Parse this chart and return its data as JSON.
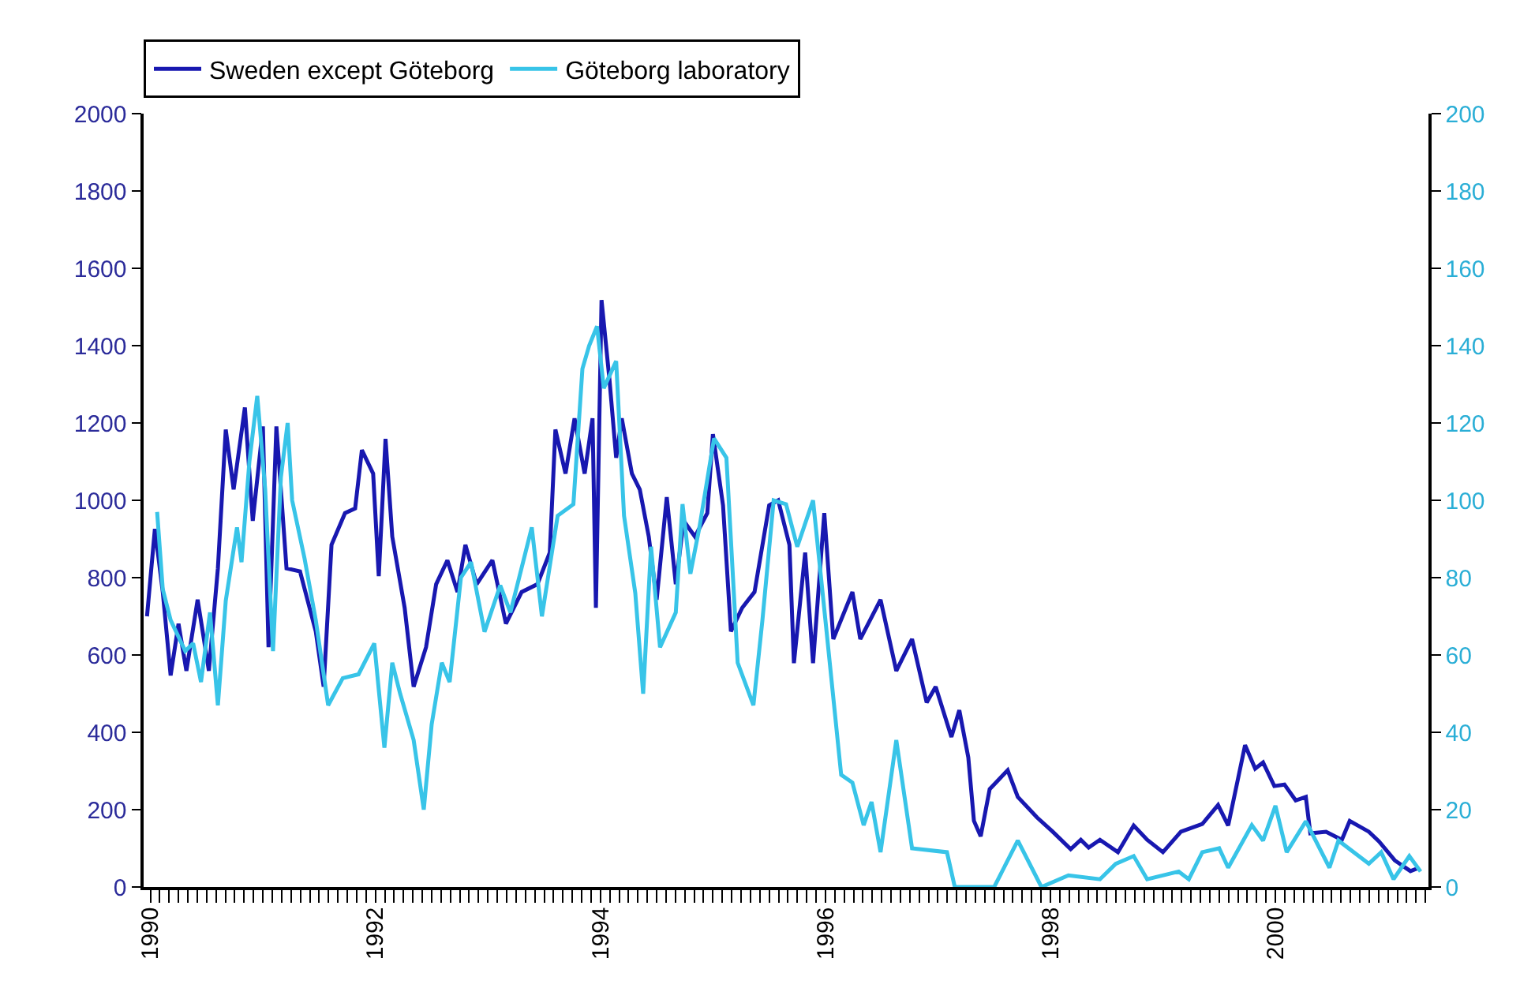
{
  "chart_data": {
    "type": "line",
    "xlim": [
      1989.94,
      2001.36
    ],
    "xticks": [
      1990,
      1992,
      1994,
      1996,
      1998,
      2000
    ],
    "ylim": [
      0,
      2000
    ],
    "yticks": [
      0,
      200,
      400,
      600,
      800,
      1000,
      1200,
      1400,
      1600,
      1800,
      2000
    ],
    "y2lim": [
      0,
      200
    ],
    "y2ticks": [
      0,
      20,
      40,
      60,
      80,
      100,
      120,
      140,
      160,
      180,
      200
    ],
    "grid": false,
    "legend": "top left",
    "marker": "none",
    "line_style": "solid",
    "series": [
      {
        "name": "Sweden except Göteborg",
        "color": "#1818b0",
        "x": [
          1989.97,
          1990.04,
          1990.11,
          1990.18,
          1990.25,
          1990.32,
          1990.42,
          1990.52,
          1990.6,
          1990.67,
          1990.74,
          1990.84,
          1990.91,
          1991.0,
          1991.05,
          1991.12,
          1991.21,
          1991.33,
          1991.47,
          1991.54,
          1991.61,
          1991.73,
          1991.82,
          1991.88,
          1991.98,
          1992.03,
          1992.09,
          1992.15,
          1992.26,
          1992.34,
          1992.45,
          1992.54,
          1992.64,
          1992.73,
          1992.8,
          1992.9,
          1993.04,
          1993.16,
          1993.3,
          1993.44,
          1993.55,
          1993.6,
          1993.69,
          1993.77,
          1993.86,
          1993.93,
          1993.96,
          1994.01,
          1994.08,
          1994.14,
          1994.19,
          1994.28,
          1994.35,
          1994.43,
          1994.5,
          1994.59,
          1994.67,
          1994.74,
          1994.84,
          1994.95,
          1995.0,
          1995.09,
          1995.16,
          1995.26,
          1995.37,
          1995.5,
          1995.58,
          1995.68,
          1995.72,
          1995.82,
          1995.89,
          1995.99,
          1996.07,
          1996.24,
          1996.31,
          1996.49,
          1996.63,
          1996.77,
          1996.9,
          1996.98,
          1997.12,
          1997.19,
          1997.27,
          1997.32,
          1997.38,
          1997.46,
          1997.62,
          1997.71,
          1997.88,
          1998.02,
          1998.18,
          1998.27,
          1998.34,
          1998.44,
          1998.6,
          1998.74,
          1998.86,
          1999.0,
          1999.16,
          1999.35,
          1999.49,
          1999.58,
          1999.73,
          1999.82,
          1999.89,
          1999.99,
          2000.08,
          2000.18,
          2000.27,
          2000.31,
          2000.45,
          2000.59,
          2000.66,
          2000.83,
          2000.92,
          2001.06,
          2001.2,
          2001.27
        ],
        "values": [
          700,
          926,
          763,
          547,
          681,
          559,
          743,
          559,
          824,
          1183,
          1028,
          1240,
          947,
          1191,
          620,
          1191,
          824,
          816,
          661,
          518,
          885,
          967,
          979,
          1130,
          1069,
          804,
          1159,
          906,
          722,
          518,
          620,
          783,
          845,
          763,
          885,
          783,
          845,
          681,
          763,
          783,
          865,
          1183,
          1069,
          1212,
          1069,
          1212,
          722,
          1518,
          1314,
          1110,
          1212,
          1069,
          1028,
          906,
          743,
          1008,
          783,
          947,
          906,
          967,
          1171,
          987,
          661,
          722,
          763,
          987,
          1000,
          885,
          579,
          865,
          579,
          967,
          641,
          763,
          641,
          743,
          559,
          641,
          477,
          518,
          388,
          457,
          335,
          171,
          131,
          253,
          302,
          233,
          180,
          143,
          98,
          122,
          102,
          122,
          90,
          159,
          122,
          90,
          143,
          163,
          212,
          159,
          367,
          306,
          322,
          261,
          265,
          224,
          233,
          139,
          143,
          122,
          171,
          143,
          118,
          69,
          41,
          49
        ]
      },
      {
        "name": "Göteborg laboratory",
        "color": "#38c4e8",
        "axis": "y2",
        "x": [
          1990.06,
          1990.11,
          1990.18,
          1990.31,
          1990.38,
          1990.45,
          1990.53,
          1990.6,
          1990.67,
          1990.77,
          1990.81,
          1990.88,
          1990.95,
          1991.02,
          1991.09,
          1991.16,
          1991.22,
          1991.26,
          1991.37,
          1991.47,
          1991.58,
          1991.71,
          1991.85,
          1991.99,
          1992.08,
          1992.15,
          1992.22,
          1992.34,
          1992.43,
          1992.5,
          1992.59,
          1992.66,
          1992.76,
          1992.85,
          1992.97,
          1993.11,
          1993.2,
          1993.39,
          1993.48,
          1993.62,
          1993.76,
          1993.84,
          1993.9,
          1993.97,
          1994.03,
          1994.14,
          1994.21,
          1994.31,
          1994.38,
          1994.45,
          1994.53,
          1994.67,
          1994.73,
          1994.8,
          1994.88,
          1995.01,
          1995.12,
          1995.22,
          1995.36,
          1995.44,
          1995.54,
          1995.65,
          1995.75,
          1995.89,
          1996.0,
          1996.14,
          1996.24,
          1996.34,
          1996.41,
          1996.49,
          1996.63,
          1996.77,
          1997.08,
          1997.15,
          1997.5,
          1997.71,
          1997.92,
          1998.16,
          1998.44,
          1998.58,
          1998.74,
          1998.86,
          1999.14,
          1999.23,
          1999.35,
          1999.5,
          1999.58,
          1999.79,
          1999.89,
          2000.0,
          2000.1,
          2000.27,
          2000.48,
          2000.56,
          2000.83,
          2000.94,
          2001.05,
          2001.19,
          2001.29
        ],
        "values": [
          97,
          77,
          69,
          61,
          63,
          53,
          71,
          47,
          74,
          93,
          84,
          110,
          127,
          103,
          61,
          106,
          120,
          100,
          85,
          69,
          47,
          54,
          55,
          63,
          36,
          58,
          50,
          38,
          20,
          42,
          58,
          53,
          80,
          84,
          66,
          78,
          71,
          93,
          70,
          96,
          99,
          134,
          140,
          145,
          129,
          136,
          96,
          76,
          50,
          88,
          62,
          71,
          99,
          81,
          93,
          116,
          111,
          58,
          47,
          69,
          100,
          99,
          88,
          100,
          69,
          29,
          27,
          16,
          22,
          9,
          38,
          10,
          9,
          0,
          0,
          12,
          0,
          3,
          2,
          6,
          8,
          2,
          4,
          2,
          9,
          10,
          5,
          16,
          12,
          21,
          9,
          17,
          5,
          12,
          6,
          9,
          2,
          8,
          4
        ]
      }
    ]
  }
}
